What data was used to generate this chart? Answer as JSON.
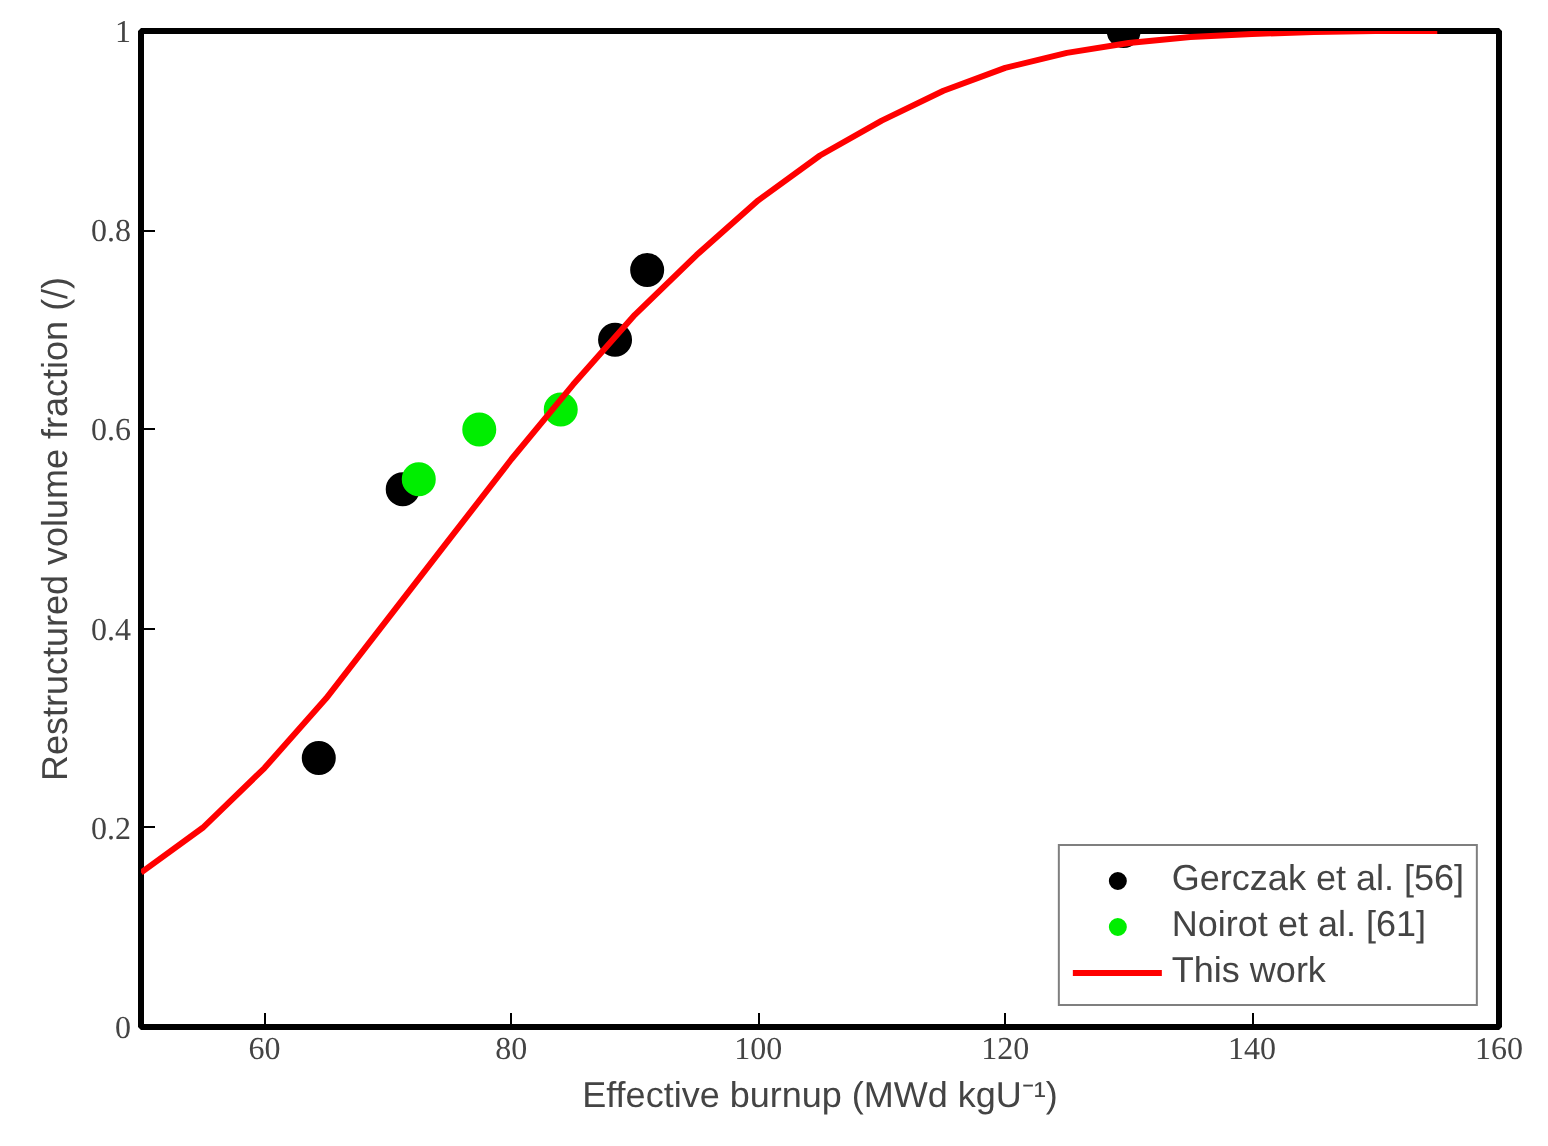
{
  "chart_data": {
    "type": "scatter",
    "xlabel": "Effective burnup (MWd kgU⁻¹)",
    "ylabel": "Restructured volume fraction (/)",
    "xlim": [
      50,
      160
    ],
    "ylim": [
      0,
      1
    ],
    "xticks": [
      60,
      80,
      100,
      120,
      140,
      160
    ],
    "yticks": [
      0,
      {
        "value": 0.2,
        "label": "0.2"
      },
      {
        "value": 0.4,
        "label": "0.4"
      },
      {
        "value": 0.6,
        "label": "0.6"
      },
      {
        "value": 0.8,
        "label": "0.8"
      },
      1
    ],
    "grid": false,
    "legend": "bottom right",
    "series": [
      {
        "name": "Gerczak et al. [56]",
        "marker": "circle",
        "color": "#000000",
        "x": [
          64.4,
          71.2,
          88.4,
          91.0,
          129.6
        ],
        "values": [
          0.27,
          0.54,
          0.69,
          0.76,
          1.0
        ]
      },
      {
        "name": "Noirot et al. [61]",
        "marker": "circle",
        "color": "#00ee00",
        "x": [
          72.5,
          77.4,
          84.0
        ],
        "values": [
          0.55,
          0.6,
          0.62
        ]
      },
      {
        "name": "This work",
        "type": "line",
        "line_style": "solid",
        "color": "#ff0000",
        "x": [
          50,
          55,
          60,
          65,
          70,
          75,
          80,
          85,
          90,
          95,
          100,
          105,
          110,
          115,
          120,
          125,
          130,
          135,
          140,
          145,
          150,
          155
        ],
        "values": [
          0.155,
          0.2,
          0.26,
          0.33,
          0.41,
          0.49,
          0.57,
          0.645,
          0.715,
          0.775,
          0.83,
          0.875,
          0.91,
          0.94,
          0.963,
          0.978,
          0.988,
          0.994,
          0.997,
          0.999,
          1.0,
          1.0
        ]
      }
    ]
  }
}
